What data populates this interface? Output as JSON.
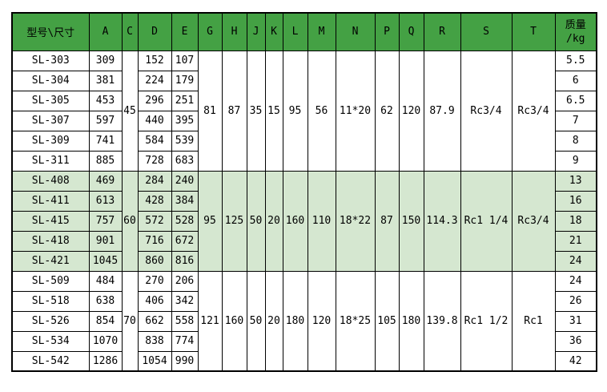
{
  "table": {
    "header": {
      "model_label": "型号\\尺寸",
      "dim_columns": [
        "A",
        "C",
        "D",
        "E",
        "G",
        "H",
        "J",
        "K",
        "L",
        "M",
        "N",
        "P",
        "Q",
        "R",
        "S",
        "T"
      ],
      "weight_label_line1": "质量",
      "weight_label_line2": "/kg"
    },
    "merged_dim_order_after_E": [
      "G",
      "H",
      "J",
      "K",
      "L",
      "M",
      "N",
      "P",
      "Q",
      "R",
      "S",
      "T"
    ],
    "groups": [
      {
        "shaded": false,
        "merged": {
          "C": "45",
          "G": "81",
          "H": "87",
          "J": "35",
          "K": "15",
          "L": "95",
          "M": "56",
          "N": "11*20",
          "P": "62",
          "Q": "120",
          "R": "87.9",
          "S": "Rc3/4",
          "T": "Rc3/4"
        },
        "rows": [
          {
            "model": "SL-303",
            "A": "309",
            "D": "152",
            "E": "107",
            "weight": "5.5"
          },
          {
            "model": "SL-304",
            "A": "381",
            "D": "224",
            "E": "179",
            "weight": "6"
          },
          {
            "model": "SL-305",
            "A": "453",
            "D": "296",
            "E": "251",
            "weight": "6.5"
          },
          {
            "model": "SL-307",
            "A": "597",
            "D": "440",
            "E": "395",
            "weight": "7"
          },
          {
            "model": "SL-309",
            "A": "741",
            "D": "584",
            "E": "539",
            "weight": "8"
          },
          {
            "model": "SL-311",
            "A": "885",
            "D": "728",
            "E": "683",
            "weight": "9"
          }
        ]
      },
      {
        "shaded": true,
        "merged": {
          "C": "60",
          "G": "95",
          "H": "125",
          "J": "50",
          "K": "20",
          "L": "160",
          "M": "110",
          "N": "18*22",
          "P": "87",
          "Q": "150",
          "R": "114.3",
          "S": "Rc1 1/4",
          "T": "Rc3/4"
        },
        "rows": [
          {
            "model": "SL-408",
            "A": "469",
            "D": "284",
            "E": "240",
            "weight": "13"
          },
          {
            "model": "SL-411",
            "A": "613",
            "D": "428",
            "E": "384",
            "weight": "16"
          },
          {
            "model": "SL-415",
            "A": "757",
            "D": "572",
            "E": "528",
            "weight": "18"
          },
          {
            "model": "SL-418",
            "A": "901",
            "D": "716",
            "E": "672",
            "weight": "21"
          },
          {
            "model": "SL-421",
            "A": "1045",
            "D": "860",
            "E": "816",
            "weight": "24"
          }
        ]
      },
      {
        "shaded": false,
        "merged": {
          "C": "70",
          "G": "121",
          "H": "160",
          "J": "50",
          "K": "20",
          "L": "180",
          "M": "120",
          "N": "18*25",
          "P": "105",
          "Q": "180",
          "R": "139.8",
          "S": "Rc1 1/2",
          "T": "Rc1"
        },
        "rows": [
          {
            "model": "SL-509",
            "A": "484",
            "D": "270",
            "E": "206",
            "weight": "24"
          },
          {
            "model": "SL-518",
            "A": "638",
            "D": "406",
            "E": "342",
            "weight": "26"
          },
          {
            "model": "SL-526",
            "A": "854",
            "D": "662",
            "E": "558",
            "weight": "31"
          },
          {
            "model": "SL-534",
            "A": "1070",
            "D": "838",
            "E": "774",
            "weight": "36"
          },
          {
            "model": "SL-542",
            "A": "1286",
            "D": "1054",
            "E": "990",
            "weight": "42"
          }
        ]
      }
    ],
    "colors": {
      "header_bg": "#44A144",
      "shaded_row_bg": "#D5E7D0",
      "border": "#000000",
      "text": "#000000"
    }
  }
}
